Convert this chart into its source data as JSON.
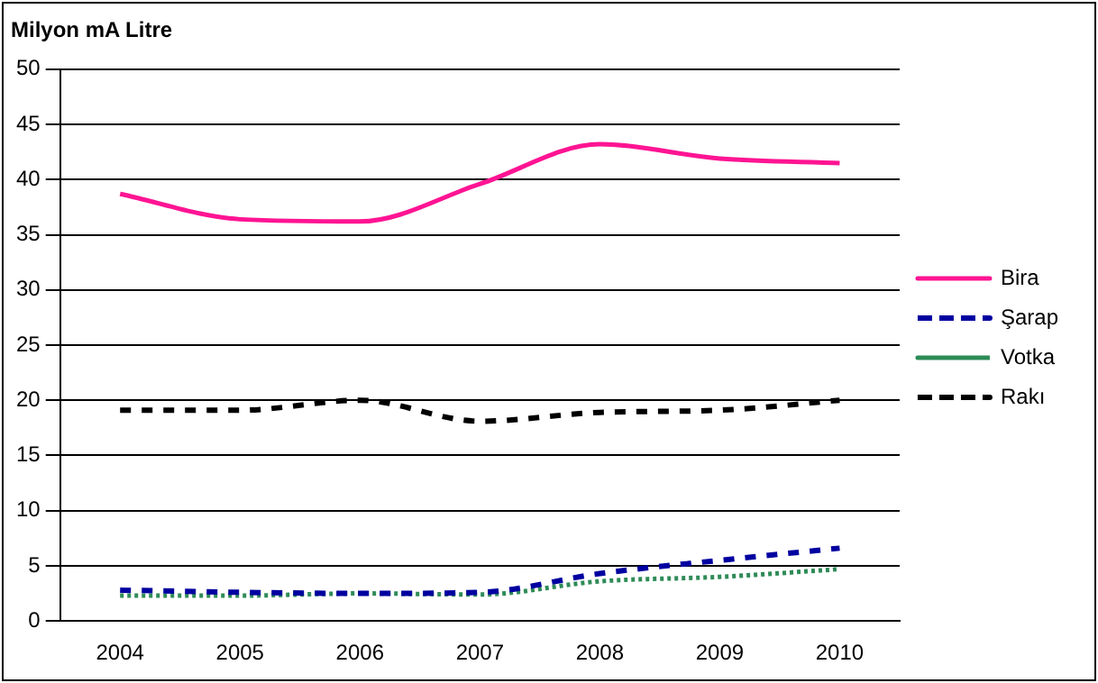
{
  "chart_data": {
    "type": "line",
    "title": "Milyon mA Litre",
    "categories": [
      "2004",
      "2005",
      "2006",
      "2007",
      "2008",
      "2009",
      "2010"
    ],
    "series": [
      {
        "name": "Bira",
        "color": "#ff1493",
        "line_style": "solid",
        "values": [
          38.7,
          36.4,
          36.2,
          39.6,
          43.2,
          41.9,
          41.5
        ]
      },
      {
        "name": "Şarap",
        "color": "#0000a0",
        "line_style": "dashed",
        "values": [
          2.8,
          2.6,
          2.5,
          2.6,
          4.3,
          5.5,
          6.6
        ]
      },
      {
        "name": "Votka",
        "color": "#2e8b57",
        "line_style": "dotted",
        "values": [
          2.3,
          2.3,
          2.5,
          2.4,
          3.6,
          4.0,
          4.7
        ]
      },
      {
        "name": "Rakı",
        "color": "#000000",
        "line_style": "dashed",
        "values": [
          19.1,
          19.1,
          20.0,
          18.1,
          18.9,
          19.1,
          20.0
        ]
      }
    ],
    "ylim": [
      0,
      50
    ],
    "yticks": [
      0,
      5,
      10,
      15,
      20,
      25,
      30,
      35,
      40,
      45,
      50
    ],
    "grid": "y",
    "legend": "right",
    "marker": "none"
  }
}
